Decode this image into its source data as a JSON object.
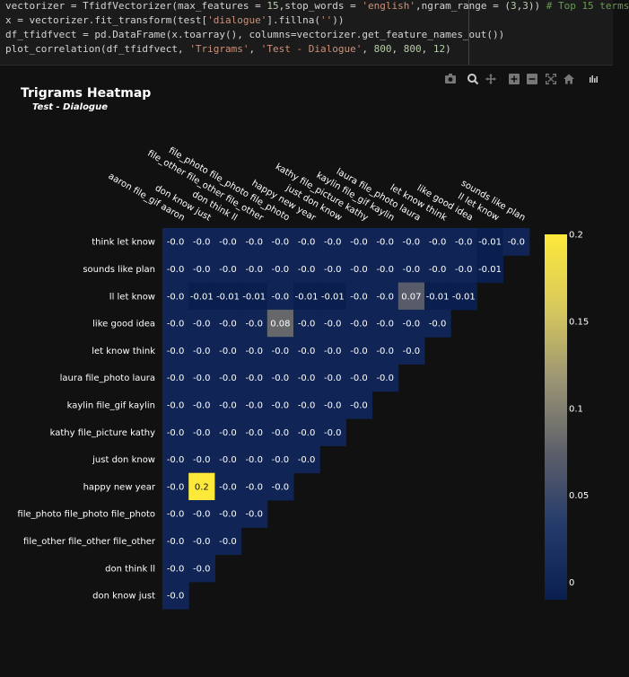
{
  "code": {
    "lines": [
      [
        [
          "vectorizer = TfidfVectorizer(max_features = ",
          ""
        ],
        [
          "15",
          "num"
        ],
        [
          ",stop_words = ",
          ""
        ],
        [
          "'english'",
          "str"
        ],
        [
          ",ngram_range = (",
          ""
        ],
        [
          "3",
          "num"
        ],
        [
          ",",
          ""
        ],
        [
          "3",
          "num"
        ],
        [
          ")) ",
          ""
        ],
        [
          "# Top 15 terms",
          "cmt"
        ]
      ],
      [
        [
          "x = vectorizer.fit_transform(test[",
          ""
        ],
        [
          "'dialogue'",
          "str"
        ],
        [
          "].fillna(",
          ""
        ],
        [
          "''",
          "str"
        ],
        [
          "))",
          ""
        ]
      ],
      [
        [
          "df_tfidfvect = pd.DataFrame(x.toarray(), columns=vectorizer.get_feature_names_out())",
          ""
        ]
      ],
      [
        [
          "plot_correlation(df_tfidfvect, ",
          ""
        ],
        [
          "'Trigrams'",
          "str"
        ],
        [
          ", ",
          ""
        ],
        [
          "'Test - Dialogue'",
          "str"
        ],
        [
          ", ",
          ""
        ],
        [
          "800",
          "num"
        ],
        [
          ", ",
          ""
        ],
        [
          "800",
          "num"
        ],
        [
          ", ",
          ""
        ],
        [
          "12",
          "num"
        ],
        [
          ")",
          ""
        ]
      ]
    ]
  },
  "modebar": {
    "icons": [
      "camera-icon",
      "zoom-icon",
      "pan-icon",
      "zoom-in-icon",
      "zoom-out-icon",
      "autoscale-icon",
      "home-icon",
      "plotly-logo-icon"
    ]
  },
  "chart_data": {
    "type": "heatmap",
    "title": "Trigrams Heatmap",
    "subtitle": "Test - Dialogue",
    "x_labels": [
      "aaron file_gif aaron",
      "don know just",
      "don think ll",
      "file_other file_other file_other",
      "file_photo file_photo file_photo",
      "happy new year",
      "just don know",
      "kathy file_picture kathy",
      "kaylin file_gif kaylin",
      "laura file_photo laura",
      "let know think",
      "like good idea",
      "ll let know",
      "sounds like plan"
    ],
    "y_labels": [
      "think let know",
      "sounds like plan",
      "ll let know",
      "like good idea",
      "let know think",
      "laura file_photo laura",
      "kaylin file_gif kaylin",
      "kathy file_picture kathy",
      "just don know",
      "happy new year",
      "file_photo file_photo file_photo",
      "file_other file_other file_other",
      "don think ll",
      "don know just"
    ],
    "values": [
      [
        -0.0,
        -0.0,
        -0.0,
        -0.0,
        -0.0,
        -0.0,
        -0.0,
        -0.0,
        -0.0,
        -0.0,
        -0.0,
        -0.0,
        -0.01,
        -0.0
      ],
      [
        -0.0,
        -0.0,
        -0.0,
        -0.0,
        -0.0,
        -0.0,
        -0.0,
        -0.0,
        -0.0,
        -0.0,
        -0.0,
        -0.0,
        -0.01
      ],
      [
        -0.0,
        -0.01,
        -0.01,
        -0.01,
        -0.0,
        -0.01,
        -0.01,
        -0.0,
        -0.0,
        0.07,
        -0.01,
        -0.01
      ],
      [
        -0.0,
        -0.0,
        -0.0,
        -0.0,
        0.08,
        -0.0,
        -0.0,
        -0.0,
        -0.0,
        -0.0,
        -0.0
      ],
      [
        -0.0,
        -0.0,
        -0.0,
        -0.0,
        -0.0,
        -0.0,
        -0.0,
        -0.0,
        -0.0,
        -0.0
      ],
      [
        -0.0,
        -0.0,
        -0.0,
        -0.0,
        -0.0,
        -0.0,
        -0.0,
        -0.0,
        -0.0
      ],
      [
        -0.0,
        -0.0,
        -0.0,
        -0.0,
        -0.0,
        -0.0,
        -0.0,
        -0.0
      ],
      [
        -0.0,
        -0.0,
        -0.0,
        -0.0,
        -0.0,
        -0.0,
        -0.0
      ],
      [
        -0.0,
        -0.0,
        -0.0,
        -0.0,
        -0.0,
        -0.0
      ],
      [
        -0.0,
        0.2,
        -0.0,
        -0.0,
        -0.0
      ],
      [
        -0.0,
        -0.0,
        -0.0,
        -0.0
      ],
      [
        -0.0,
        -0.0,
        -0.0
      ],
      [
        -0.0,
        -0.0
      ],
      [
        -0.0
      ]
    ],
    "zmin": -0.01,
    "zmax": 0.2,
    "colorscale": [
      "#0a1f4e",
      "#233a6b",
      "#5c5f6a",
      "#9a9474",
      "#d8c95c",
      "#fde93a"
    ],
    "colorbar_ticks": [
      "0.2",
      "0.15",
      "0.1",
      "0.05",
      "0"
    ],
    "colorbar_tick_values": [
      0.2,
      0.15,
      0.1,
      0.05,
      0
    ],
    "background": "#111111",
    "text_color": "#ffffff",
    "grid": false
  }
}
